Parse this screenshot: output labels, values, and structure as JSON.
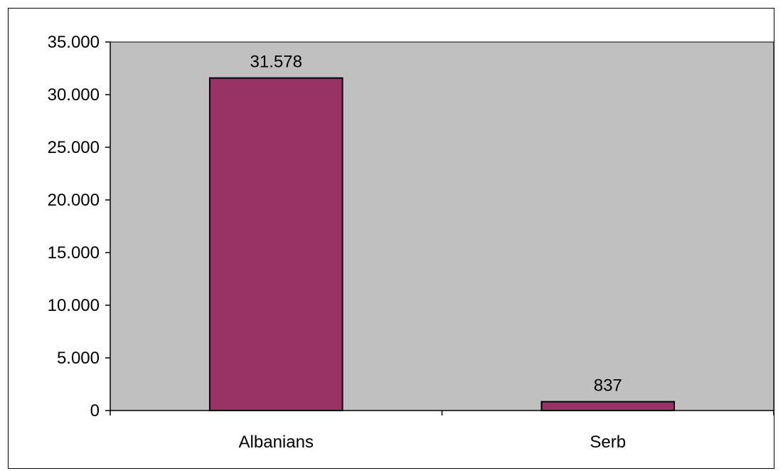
{
  "chart_data": {
    "type": "bar",
    "categories": [
      "Albanians",
      "Serb"
    ],
    "values": [
      31578,
      837
    ],
    "value_labels": [
      "31.578",
      "837"
    ],
    "ylim": [
      0,
      35000
    ],
    "yticks": [
      0,
      5000,
      10000,
      15000,
      20000,
      25000,
      30000,
      35000
    ],
    "ytick_labels": [
      "0",
      "5.000",
      "10.000",
      "15.000",
      "20.000",
      "25.000",
      "30.000",
      "35.000"
    ],
    "title": "",
    "xlabel": "",
    "ylabel": "",
    "grid": false,
    "legend": "none",
    "colors": {
      "bar": "#993366",
      "plot_area": "#c0c0c0",
      "axis": "#000000",
      "border": "#000000",
      "background": "#ffffff"
    }
  }
}
